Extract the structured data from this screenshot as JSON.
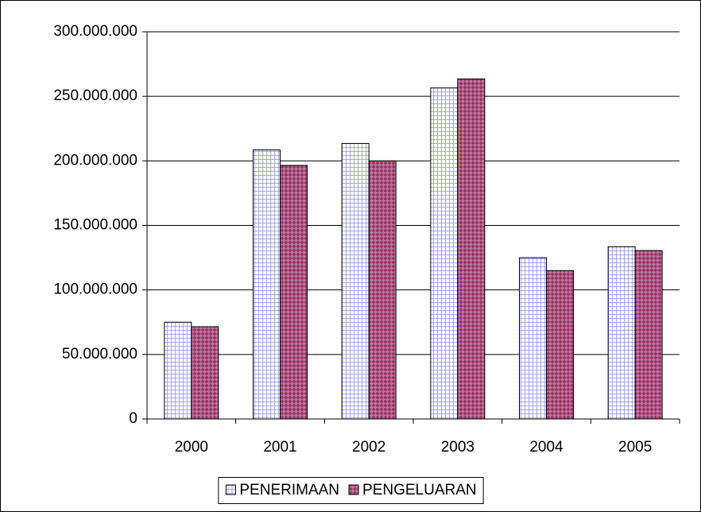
{
  "chart_data": {
    "type": "bar",
    "categories": [
      "2000",
      "2001",
      "2002",
      "2003",
      "2004",
      "2005"
    ],
    "series": [
      {
        "name": "PENERIMAAN",
        "color": "#ccccff",
        "values": [
          75000000,
          208500000,
          213500000,
          256500000,
          125000000,
          133500000
        ]
      },
      {
        "name": "PENGELUARAN",
        "color": "#993366",
        "values": [
          71500000,
          196500000,
          200000000,
          263500000,
          115000000,
          130500000
        ]
      }
    ],
    "ylim": [
      0,
      300000000
    ],
    "yticks": [
      0,
      {
        "value": 50000000,
        "label": "50.000.000"
      },
      {
        "value": 100000000,
        "label": "100.000.000"
      },
      {
        "value": 150000000,
        "label": "150.000.000"
      },
      {
        "value": 200000000,
        "label": "200.000.000"
      },
      {
        "value": 250000000,
        "label": "250.000.000"
      },
      {
        "value": 300000000,
        "label": "300.000.000"
      }
    ],
    "grid": true,
    "legend": "bottom"
  }
}
